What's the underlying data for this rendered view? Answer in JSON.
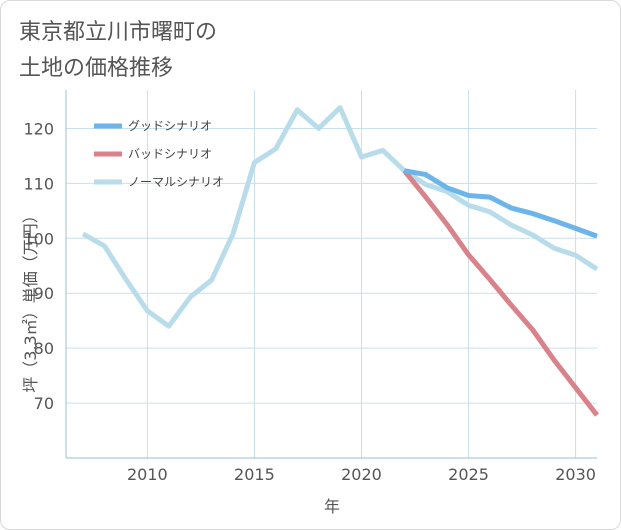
{
  "title_lines": [
    "東京都立川市曙町の",
    "土地の価格推移"
  ],
  "colors": {
    "good": "#6bb5ea",
    "bad": "#d9828a",
    "normal": "#b9dceb",
    "grid": "#c8e0ea",
    "text": "#555555"
  },
  "chart_data": {
    "type": "line",
    "xlabel": "年",
    "ylabel": "坪（3.3㎡）単価（万円）",
    "xlim": [
      2006.2,
      2031
    ],
    "ylim": [
      60,
      127
    ],
    "x_ticks": [
      2010,
      2015,
      2020,
      2025,
      2030
    ],
    "y_ticks": [
      70,
      80,
      90,
      100,
      110,
      120
    ],
    "grid": true,
    "legend_position": "top-left",
    "series": [
      {
        "name": "グッドシナリオ",
        "color_key": "good",
        "x": [
          2022,
          2023,
          2024,
          2025,
          2026,
          2027,
          2028,
          2029,
          2030,
          2031
        ],
        "y": [
          112.3,
          111.6,
          109.2,
          107.8,
          107.5,
          105.5,
          104.5,
          103.2,
          101.8,
          100.4
        ]
      },
      {
        "name": "バッドシナリオ",
        "color_key": "bad",
        "x": [
          2022,
          2023,
          2024,
          2025,
          2026,
          2027,
          2028,
          2029,
          2030,
          2031
        ],
        "y": [
          112.3,
          107.5,
          102.5,
          97.0,
          92.5,
          87.8,
          83.3,
          77.8,
          72.8,
          67.8
        ]
      },
      {
        "name": "ノーマルシナリオ",
        "color_key": "normal",
        "x": [
          2007,
          2008,
          2009,
          2010,
          2011,
          2012,
          2013,
          2014,
          2015,
          2016,
          2017,
          2018,
          2019,
          2020,
          2021,
          2022,
          2023,
          2024,
          2025,
          2026,
          2027,
          2028,
          2029,
          2030,
          2031
        ],
        "y": [
          100.8,
          98.6,
          92.5,
          86.8,
          84.0,
          89.3,
          92.4,
          100.8,
          113.8,
          116.3,
          123.4,
          120.0,
          123.8,
          114.8,
          116.0,
          112.3,
          109.8,
          108.5,
          106.0,
          104.8,
          102.4,
          100.6,
          98.2,
          96.9,
          94.4
        ]
      }
    ]
  }
}
